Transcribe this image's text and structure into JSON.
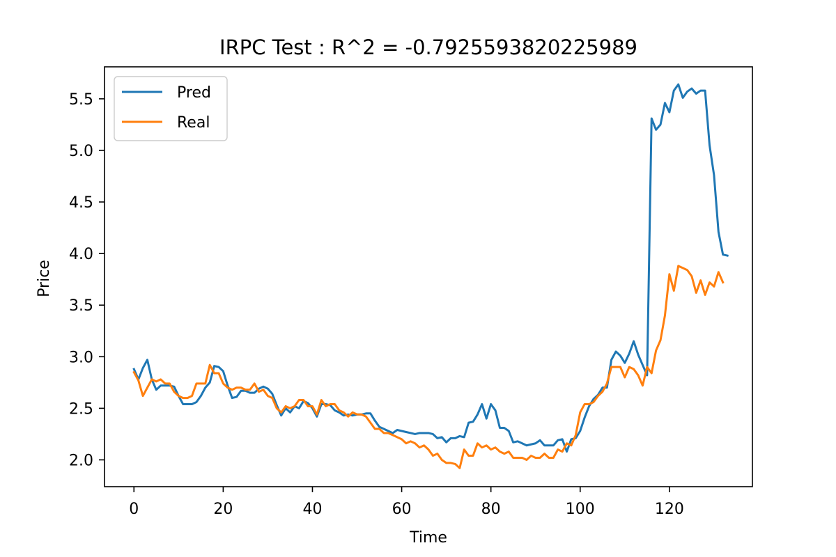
{
  "chart_data": {
    "type": "line",
    "title": "IRPC Test : R^2 = -0.7925593820225989",
    "xlabel": "Time",
    "ylabel": "Price",
    "xlim": [
      -6.6,
      138.6
    ],
    "ylim": [
      1.74,
      5.81
    ],
    "xticks": [
      0,
      20,
      40,
      60,
      80,
      100,
      120
    ],
    "xtick_labels": [
      "0",
      "20",
      "40",
      "60",
      "80",
      "100",
      "120"
    ],
    "yticks": [
      2.0,
      2.5,
      3.0,
      3.5,
      4.0,
      4.5,
      5.0,
      5.5
    ],
    "ytick_labels": [
      "2.0",
      "2.5",
      "3.0",
      "3.5",
      "4.0",
      "4.5",
      "5.0",
      "5.5"
    ],
    "grid": false,
    "legend_position": "top-left",
    "series": [
      {
        "name": "Pred",
        "color": "#1f77b4",
        "values": [
          2.88,
          2.78,
          2.89,
          2.97,
          2.78,
          2.68,
          2.72,
          2.72,
          2.72,
          2.71,
          2.62,
          2.54,
          2.54,
          2.54,
          2.56,
          2.62,
          2.7,
          2.75,
          2.91,
          2.9,
          2.86,
          2.72,
          2.6,
          2.61,
          2.67,
          2.67,
          2.65,
          2.65,
          2.69,
          2.71,
          2.69,
          2.64,
          2.53,
          2.43,
          2.5,
          2.46,
          2.52,
          2.5,
          2.57,
          2.55,
          2.5,
          2.42,
          2.54,
          2.54,
          2.53,
          2.48,
          2.46,
          2.43,
          2.44,
          2.43,
          2.44,
          2.44,
          2.45,
          2.45,
          2.38,
          2.32,
          2.3,
          2.28,
          2.26,
          2.29,
          2.28,
          2.27,
          2.26,
          2.25,
          2.26,
          2.26,
          2.26,
          2.25,
          2.21,
          2.22,
          2.17,
          2.21,
          2.21,
          2.23,
          2.22,
          2.36,
          2.37,
          2.44,
          2.54,
          2.4,
          2.54,
          2.48,
          2.31,
          2.31,
          2.28,
          2.17,
          2.18,
          2.16,
          2.14,
          2.15,
          2.16,
          2.19,
          2.14,
          2.14,
          2.14,
          2.19,
          2.2,
          2.08,
          2.2,
          2.21,
          2.28,
          2.41,
          2.52,
          2.59,
          2.63,
          2.7,
          2.7,
          2.97,
          3.05,
          3.01,
          2.94,
          3.03,
          3.15,
          3.02,
          2.92,
          2.82,
          5.31,
          5.2,
          5.25,
          5.46,
          5.37,
          5.58,
          5.64,
          5.51,
          5.57,
          5.6,
          5.55,
          5.58,
          5.58,
          5.05,
          4.76,
          4.21,
          3.99,
          3.98
        ]
      },
      {
        "name": "Real",
        "color": "#ff7f0e",
        "values": [
          2.85,
          2.77,
          2.62,
          2.7,
          2.78,
          2.76,
          2.78,
          2.74,
          2.74,
          2.66,
          2.62,
          2.6,
          2.6,
          2.62,
          2.74,
          2.74,
          2.74,
          2.92,
          2.84,
          2.84,
          2.74,
          2.7,
          2.68,
          2.7,
          2.7,
          2.68,
          2.68,
          2.74,
          2.66,
          2.68,
          2.62,
          2.6,
          2.5,
          2.46,
          2.52,
          2.5,
          2.52,
          2.58,
          2.58,
          2.52,
          2.52,
          2.44,
          2.58,
          2.52,
          2.54,
          2.54,
          2.48,
          2.46,
          2.42,
          2.46,
          2.44,
          2.44,
          2.42,
          2.36,
          2.3,
          2.3,
          2.26,
          2.26,
          2.24,
          2.22,
          2.2,
          2.16,
          2.18,
          2.16,
          2.12,
          2.14,
          2.1,
          2.04,
          2.06,
          2.0,
          1.97,
          1.97,
          1.96,
          1.92,
          2.1,
          2.04,
          2.04,
          2.16,
          2.12,
          2.14,
          2.1,
          2.12,
          2.08,
          2.06,
          2.08,
          2.02,
          2.02,
          2.02,
          2.0,
          2.04,
          2.02,
          2.02,
          2.06,
          2.02,
          2.02,
          2.1,
          2.08,
          2.16,
          2.14,
          2.24,
          2.46,
          2.54,
          2.54,
          2.56,
          2.62,
          2.66,
          2.74,
          2.9,
          2.9,
          2.9,
          2.8,
          2.9,
          2.88,
          2.82,
          2.72,
          2.9,
          2.84,
          3.06,
          3.16,
          3.4,
          3.8,
          3.64,
          3.88,
          3.86,
          3.84,
          3.78,
          3.62,
          3.74,
          3.6,
          3.72,
          3.68,
          3.82,
          3.72
        ]
      }
    ]
  }
}
